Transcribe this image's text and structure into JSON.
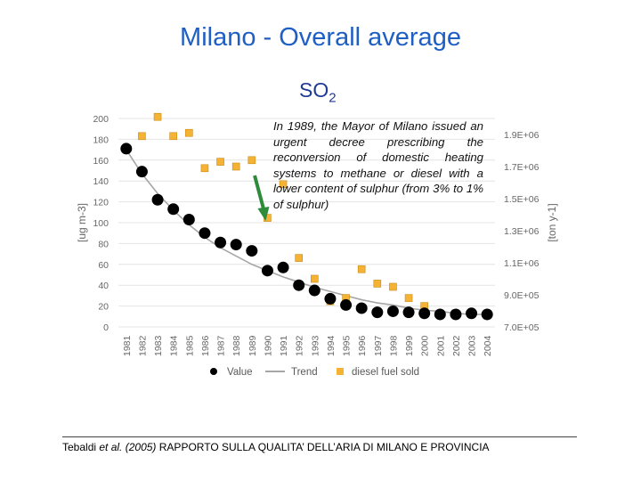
{
  "slide": {
    "title": "Milano - Overall average",
    "pollutant_main": "SO",
    "pollutant_sub": "2",
    "annotation": "In 1989, the Mayor of Milano issued an urgent decree prescribing the reconversion of domestic heating systems to methane or diesel with a lower content of sulphur (from 3% to 1% of sulphur)",
    "citation_authors": "Tebaldi",
    "citation_etal": "et al. (2005)",
    "citation_rest": "RAPPORTO SULLA QUALITA’ DELL’ARIA DI MILANO E PROVINCIA"
  },
  "colors": {
    "title": "#1f5fc4",
    "value_points": "#000000",
    "trend_line": "#a6a6a6",
    "diesel_points": "#f5b335",
    "arrow": "#2e8b3a"
  },
  "chart_data": {
    "type": "scatter",
    "x": [
      1981,
      1982,
      1983,
      1984,
      1985,
      1986,
      1987,
      1988,
      1989,
      1990,
      1991,
      1992,
      1993,
      1994,
      1995,
      1996,
      1997,
      1998,
      1999,
      2000,
      2001,
      2002,
      2003,
      2004
    ],
    "series": [
      {
        "name": "Value",
        "axis": "left",
        "marker": "circle",
        "values": [
          171,
          149,
          122,
          113,
          103,
          90,
          81,
          79,
          73,
          54,
          57,
          40,
          35,
          27,
          21,
          18,
          14,
          15,
          14,
          13,
          12,
          12,
          13,
          12
        ]
      },
      {
        "name": "Trend",
        "axis": "left",
        "marker": "line",
        "values": [
          170,
          147,
          128,
          112,
          98,
          86,
          76,
          68,
          60,
          54,
          48,
          43,
          38,
          34,
          30,
          26,
          23,
          21,
          18,
          16,
          15,
          13,
          12,
          12
        ]
      },
      {
        "name": "diesel fuel sold",
        "axis": "right",
        "marker": "square",
        "values": [
          1810000,
          1890000,
          2010000,
          1890000,
          1910000,
          1690000,
          1730000,
          1700000,
          1740000,
          1380000,
          1590000,
          1130000,
          1000000,
          860000,
          880000,
          1060000,
          970000,
          950000,
          880000,
          830000,
          null,
          null,
          null,
          null
        ]
      }
    ],
    "ylabel": "[ug m-3]",
    "ylim": [
      0,
      200
    ],
    "yticks": [
      "200",
      "180",
      "160",
      "140",
      "120",
      "100",
      "80",
      "60",
      "40",
      "20",
      "0"
    ],
    "y2label": "[ton y-1]",
    "y2lim": [
      700000,
      2000000
    ],
    "y2ticks": [
      "1.9E+06",
      "1.7E+06",
      "1.5E+06",
      "1.3E+06",
      "1.1E+06",
      "9.0E+05",
      "7.0E+05"
    ],
    "grid": true,
    "legend": "bottom",
    "annotation_year": 1990
  }
}
